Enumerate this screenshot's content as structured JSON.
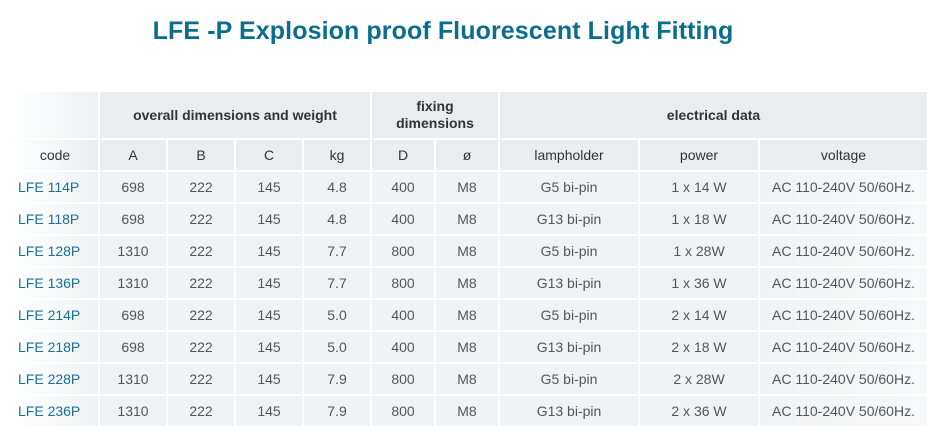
{
  "title": "LFE -P Explosion proof Fluorescent Light Fitting",
  "groups": {
    "overall": "overall dimensions and weight",
    "fixing_line1": "fixing",
    "fixing_line2": "dimensions",
    "electrical": "electrical data"
  },
  "columns": [
    "code",
    "A",
    "B",
    "C",
    "kg",
    "D",
    "ø",
    "lampholder",
    "power",
    "voltage"
  ],
  "rows": [
    {
      "code": "LFE 114P",
      "A": "698",
      "B": "222",
      "C": "145",
      "kg": "4.8",
      "D": "400",
      "o": "M8",
      "lampholder": "G5 bi-pin",
      "power": "1 x 14 W",
      "voltage": "AC 110-240V 50/60Hz."
    },
    {
      "code": "LFE 118P",
      "A": "698",
      "B": "222",
      "C": "145",
      "kg": "4.8",
      "D": "400",
      "o": "M8",
      "lampholder": "G13 bi-pin",
      "power": "1 x 18 W",
      "voltage": "AC 110-240V 50/60Hz."
    },
    {
      "code": "LFE 128P",
      "A": "1310",
      "B": "222",
      "C": "145",
      "kg": "7.7",
      "D": "800",
      "o": "M8",
      "lampholder": "G5 bi-pin",
      "power": "1 x 28W",
      "voltage": "AC 110-240V 50/60Hz."
    },
    {
      "code": "LFE 136P",
      "A": "1310",
      "B": "222",
      "C": "145",
      "kg": "7.7",
      "D": "800",
      "o": "M8",
      "lampholder": "G13 bi-pin",
      "power": "1 x 36 W",
      "voltage": "AC 110-240V 50/60Hz."
    },
    {
      "code": "LFE 214P",
      "A": "698",
      "B": "222",
      "C": "145",
      "kg": "5.0",
      "D": "400",
      "o": "M8",
      "lampholder": "G5 bi-pin",
      "power": "2 x 14 W",
      "voltage": "AC 110-240V 50/60Hz."
    },
    {
      "code": "LFE 218P",
      "A": "698",
      "B": "222",
      "C": "145",
      "kg": "5.0",
      "D": "400",
      "o": "M8",
      "lampholder": "G13 bi-pin",
      "power": "2 x 18 W",
      "voltage": "AC 110-240V 50/60Hz."
    },
    {
      "code": "LFE 228P",
      "A": "1310",
      "B": "222",
      "C": "145",
      "kg": "7.9",
      "D": "800",
      "o": "M8",
      "lampholder": "G5 bi-pin",
      "power": "2 x 28W",
      "voltage": "AC 110-240V 50/60Hz."
    },
    {
      "code": "LFE 236P",
      "A": "1310",
      "B": "222",
      "C": "145",
      "kg": "7.9",
      "D": "800",
      "o": "M8",
      "lampholder": "G13 bi-pin",
      "power": "2 x 36 W",
      "voltage": "AC 110-240V 50/60Hz."
    }
  ]
}
